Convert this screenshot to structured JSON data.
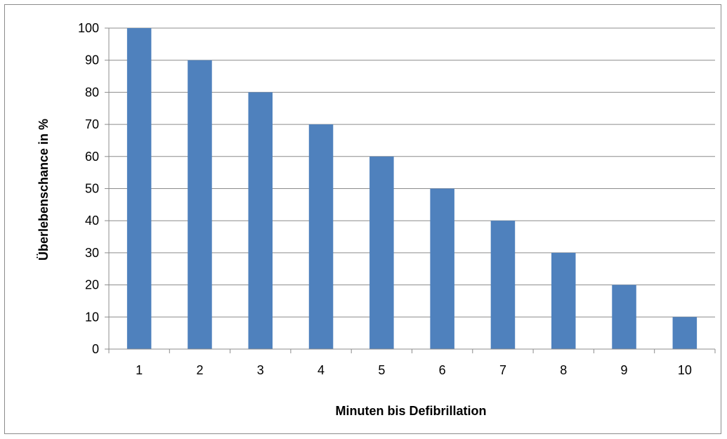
{
  "chart_data": {
    "type": "bar",
    "title": "",
    "xlabel": "Minuten bis Defibrillation",
    "ylabel": "Überlebenschance in %",
    "categories": [
      "1",
      "2",
      "3",
      "4",
      "5",
      "6",
      "7",
      "8",
      "9",
      "10"
    ],
    "values": [
      100,
      90,
      80,
      70,
      60,
      50,
      40,
      30,
      20,
      10
    ],
    "ylim": [
      0,
      100
    ],
    "yticks": [
      0,
      10,
      20,
      30,
      40,
      50,
      60,
      70,
      80,
      90,
      100
    ],
    "grid": true,
    "legend": "none",
    "bar_color": "#4f81bd"
  }
}
